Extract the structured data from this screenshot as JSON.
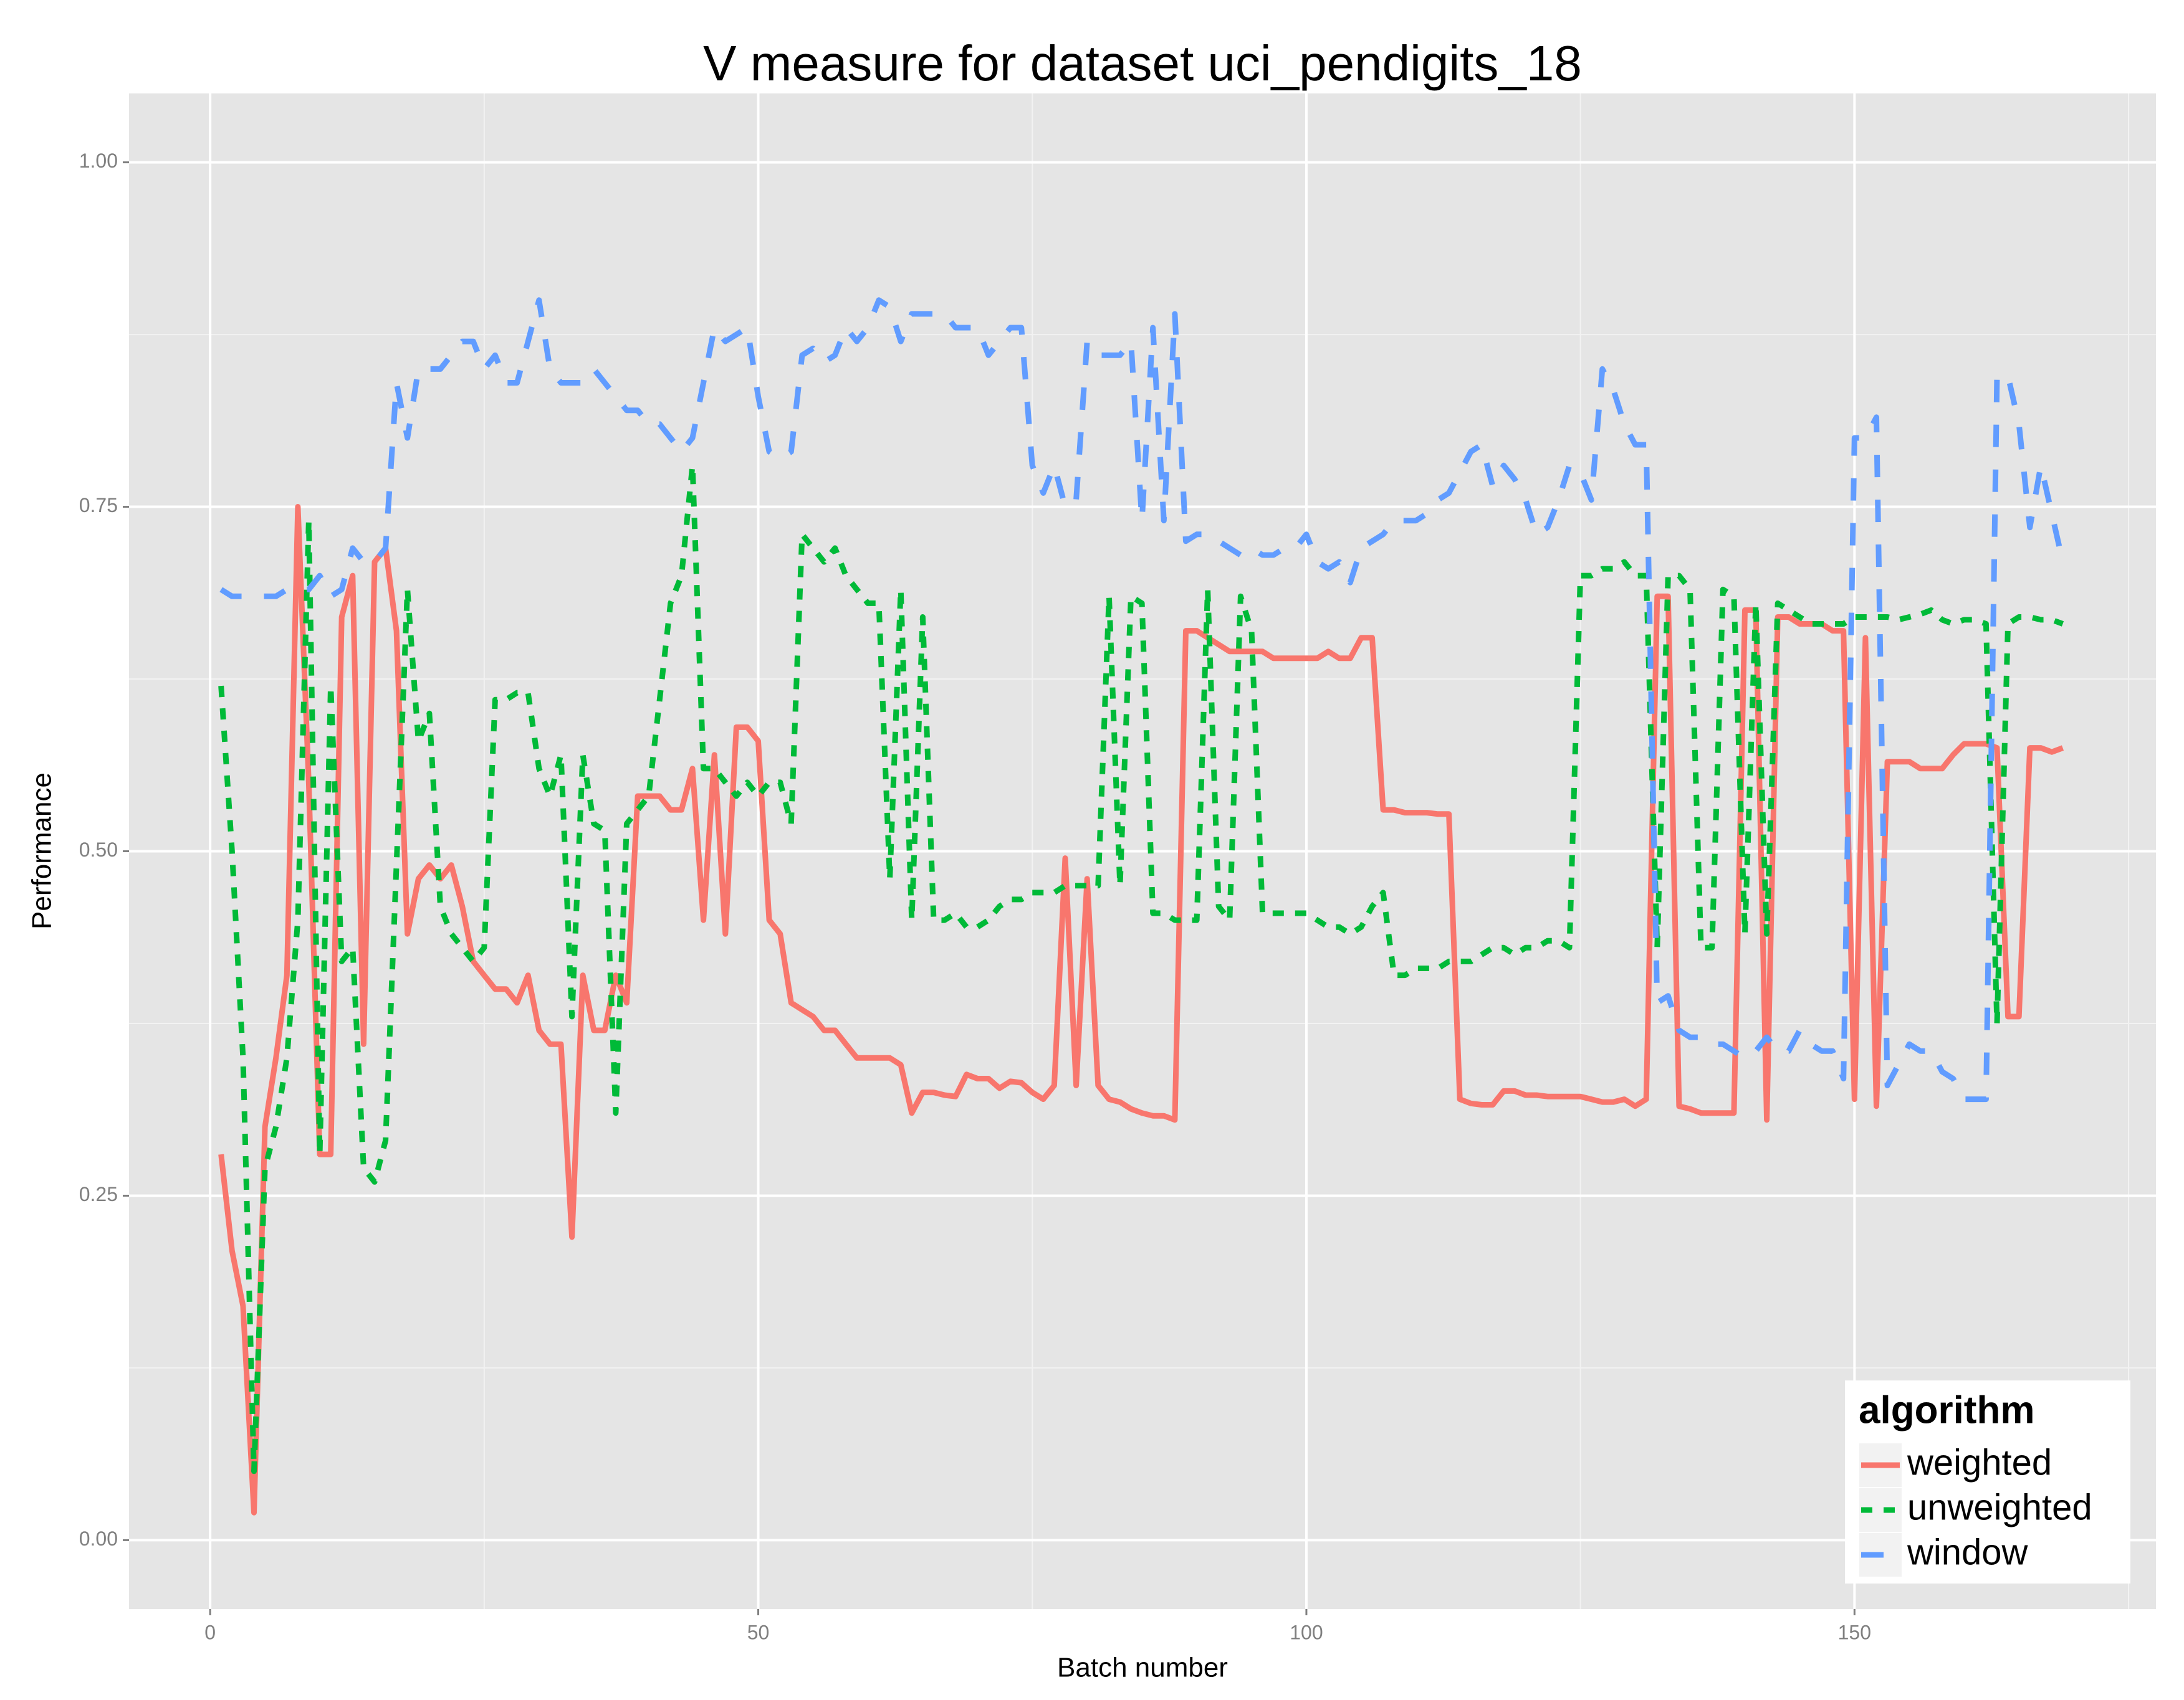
{
  "chart_data": {
    "type": "line",
    "title": "V measure for dataset uci_pendigits_18",
    "x_label": "Batch number",
    "y_label": "Performance",
    "legend_title": "algorithm",
    "legend": "bottom-right",
    "grid": true,
    "xlim": [
      -7.4,
      177.5
    ],
    "ylim": [
      -0.05,
      1.05
    ],
    "xticks": [
      0,
      50,
      100,
      150
    ],
    "yticks": [
      {
        "value": 0,
        "label": "0.00"
      },
      {
        "value": 0.25,
        "label": "0.25"
      },
      {
        "value": 0.5,
        "label": "0.50"
      },
      {
        "value": 0.75,
        "label": "0.75"
      },
      {
        "value": 1,
        "label": "1.00"
      }
    ],
    "x": [
      1,
      2,
      3,
      4,
      5,
      6,
      7,
      8,
      9,
      10,
      11,
      12,
      13,
      14,
      15,
      16,
      17,
      18,
      19,
      20,
      21,
      22,
      23,
      24,
      25,
      26,
      27,
      28,
      29,
      30,
      31,
      32,
      33,
      34,
      35,
      36,
      37,
      38,
      39,
      40,
      41,
      42,
      43,
      44,
      45,
      46,
      47,
      48,
      49,
      50,
      51,
      52,
      53,
      54,
      55,
      56,
      57,
      58,
      59,
      60,
      61,
      62,
      63,
      64,
      65,
      66,
      67,
      68,
      69,
      70,
      71,
      72,
      73,
      74,
      75,
      76,
      77,
      78,
      79,
      80,
      81,
      82,
      83,
      84,
      85,
      86,
      87,
      88,
      89,
      90,
      91,
      92,
      93,
      94,
      95,
      96,
      97,
      98,
      99,
      100,
      101,
      102,
      103,
      104,
      105,
      106,
      107,
      108,
      109,
      110,
      111,
      112,
      113,
      114,
      115,
      116,
      117,
      118,
      119,
      120,
      121,
      122,
      123,
      124,
      125,
      126,
      127,
      128,
      129,
      130,
      131,
      132,
      133,
      134,
      135,
      136,
      137,
      138,
      139,
      140,
      141,
      142,
      143,
      144,
      145,
      146,
      147,
      148,
      149,
      150,
      151,
      152,
      153,
      154,
      155,
      156,
      157,
      158,
      159,
      160,
      161,
      162,
      163,
      164,
      165,
      166,
      167,
      168,
      169
    ],
    "series": [
      {
        "name": "weighted",
        "color": "#f8766d",
        "linetype": "solid",
        "values": [
          0.28,
          0.21,
          0.17,
          0.02,
          0.3,
          0.35,
          0.41,
          0.75,
          0.55,
          0.28,
          0.28,
          0.67,
          0.7,
          0.36,
          0.71,
          0.72,
          0.66,
          0.44,
          0.48,
          0.49,
          0.48,
          0.49,
          0.46,
          0.42,
          0.41,
          0.4,
          0.4,
          0.39,
          0.41,
          0.37,
          0.36,
          0.36,
          0.22,
          0.41,
          0.37,
          0.37,
          0.41,
          0.39,
          0.54,
          0.54,
          0.54,
          0.53,
          0.53,
          0.56,
          0.45,
          0.57,
          0.44,
          0.59,
          0.59,
          0.58,
          0.45,
          0.44,
          0.39,
          0.385,
          0.38,
          0.37,
          0.37,
          0.36,
          0.35,
          0.35,
          0.35,
          0.35,
          0.345,
          0.31,
          0.325,
          0.325,
          0.323,
          0.322,
          0.338,
          0.335,
          0.335,
          0.328,
          0.333,
          0.332,
          0.325,
          0.32,
          0.33,
          0.495,
          0.33,
          0.48,
          0.33,
          0.32,
          0.318,
          0.313,
          0.31,
          0.308,
          0.308,
          0.305,
          0.66,
          0.66,
          0.655,
          0.65,
          0.645,
          0.645,
          0.645,
          0.645,
          0.64,
          0.64,
          0.64,
          0.64,
          0.64,
          0.645,
          0.64,
          0.64,
          0.655,
          0.655,
          0.53,
          0.53,
          0.528,
          0.528,
          0.528,
          0.527,
          0.527,
          0.32,
          0.317,
          0.316,
          0.316,
          0.326,
          0.326,
          0.323,
          0.323,
          0.322,
          0.322,
          0.322,
          0.322,
          0.32,
          0.318,
          0.318,
          0.32,
          0.315,
          0.32,
          0.685,
          0.685,
          0.315,
          0.313,
          0.31,
          0.31,
          0.31,
          0.31,
          0.675,
          0.675,
          0.305,
          0.67,
          0.67,
          0.665,
          0.665,
          0.665,
          0.66,
          0.66,
          0.32,
          0.655,
          0.315,
          0.565,
          0.565,
          0.565,
          0.56,
          0.56,
          0.56,
          0.57,
          0.578,
          0.578,
          0.578,
          0.575,
          0.38,
          0.38,
          0.575,
          0.575,
          0.572,
          0.575
        ]
      },
      {
        "name": "unweighted",
        "color": "#00ba38",
        "linetype": "dotted",
        "values": [
          0.62,
          0.5,
          0.35,
          0.05,
          0.27,
          0.3,
          0.35,
          0.45,
          0.74,
          0.28,
          0.62,
          0.42,
          0.43,
          0.27,
          0.26,
          0.29,
          0.49,
          0.69,
          0.58,
          0.6,
          0.46,
          0.44,
          0.43,
          0.42,
          0.43,
          0.61,
          0.61,
          0.615,
          0.615,
          0.56,
          0.54,
          0.57,
          0.38,
          0.57,
          0.52,
          0.515,
          0.31,
          0.52,
          0.53,
          0.54,
          0.61,
          0.68,
          0.7,
          0.78,
          0.56,
          0.56,
          0.55,
          0.54,
          0.55,
          0.54,
          0.55,
          0.55,
          0.52,
          0.73,
          0.72,
          0.71,
          0.72,
          0.7,
          0.69,
          0.68,
          0.68,
          0.48,
          0.69,
          0.45,
          0.67,
          0.45,
          0.45,
          0.455,
          0.445,
          0.445,
          0.45,
          0.46,
          0.465,
          0.465,
          0.47,
          0.47,
          0.47,
          0.475,
          0.475,
          0.475,
          0.475,
          0.685,
          0.475,
          0.685,
          0.68,
          0.455,
          0.455,
          0.45,
          0.45,
          0.45,
          0.69,
          0.46,
          0.45,
          0.685,
          0.66,
          0.455,
          0.455,
          0.455,
          0.455,
          0.455,
          0.45,
          0.445,
          0.445,
          0.44,
          0.445,
          0.46,
          0.47,
          0.41,
          0.41,
          0.415,
          0.415,
          0.415,
          0.42,
          0.42,
          0.42,
          0.425,
          0.43,
          0.43,
          0.425,
          0.43,
          0.43,
          0.435,
          0.435,
          0.43,
          0.7,
          0.7,
          0.705,
          0.705,
          0.71,
          0.7,
          0.7,
          0.43,
          0.7,
          0.7,
          0.69,
          0.43,
          0.43,
          0.69,
          0.685,
          0.44,
          0.68,
          0.44,
          0.68,
          0.675,
          0.67,
          0.665,
          0.665,
          0.665,
          0.665,
          0.67,
          0.67,
          0.67,
          0.67,
          0.668,
          0.67,
          0.672,
          0.675,
          0.668,
          0.665,
          0.668,
          0.668,
          0.665,
          0.375,
          0.665,
          0.67,
          0.67,
          0.668,
          0.668,
          0.665
        ]
      },
      {
        "name": "window",
        "color": "#619cff",
        "linetype": "dashed",
        "values": [
          0.69,
          0.685,
          0.685,
          0.685,
          0.685,
          0.685,
          0.69,
          0.69,
          0.69,
          0.7,
          0.685,
          0.69,
          0.72,
          0.71,
          0.71,
          0.72,
          0.84,
          0.8,
          0.85,
          0.85,
          0.85,
          0.86,
          0.87,
          0.87,
          0.85,
          0.86,
          0.84,
          0.84,
          0.87,
          0.9,
          0.85,
          0.84,
          0.84,
          0.84,
          0.85,
          0.84,
          0.83,
          0.82,
          0.82,
          0.81,
          0.81,
          0.8,
          0.79,
          0.8,
          0.84,
          0.88,
          0.87,
          0.875,
          0.88,
          0.83,
          0.79,
          0.785,
          0.79,
          0.86,
          0.865,
          0.855,
          0.86,
          0.88,
          0.87,
          0.88,
          0.9,
          0.895,
          0.87,
          0.89,
          0.89,
          0.89,
          0.89,
          0.88,
          0.88,
          0.88,
          0.86,
          0.87,
          0.88,
          0.88,
          0.78,
          0.76,
          0.78,
          0.75,
          0.755,
          0.87,
          0.86,
          0.86,
          0.86,
          0.87,
          0.74,
          0.88,
          0.74,
          0.89,
          0.725,
          0.73,
          0.73,
          0.725,
          0.72,
          0.715,
          0.72,
          0.715,
          0.715,
          0.72,
          0.72,
          0.73,
          0.71,
          0.705,
          0.71,
          0.695,
          0.72,
          0.725,
          0.73,
          0.74,
          0.74,
          0.74,
          0.745,
          0.755,
          0.76,
          0.775,
          0.79,
          0.795,
          0.765,
          0.78,
          0.77,
          0.755,
          0.73,
          0.735,
          0.755,
          0.78,
          0.775,
          0.755,
          0.85,
          0.835,
          0.81,
          0.795,
          0.795,
          0.39,
          0.395,
          0.37,
          0.365,
          0.365,
          0.36,
          0.36,
          0.355,
          0.35,
          0.355,
          0.365,
          0.355,
          0.355,
          0.37,
          0.36,
          0.355,
          0.355,
          0.335,
          0.8,
          0.8,
          0.815,
          0.33,
          0.345,
          0.36,
          0.355,
          0.355,
          0.34,
          0.335,
          0.32,
          0.32,
          0.32,
          0.845,
          0.845,
          0.81,
          0.735,
          0.78,
          0.745,
          0.71
        ]
      }
    ]
  }
}
